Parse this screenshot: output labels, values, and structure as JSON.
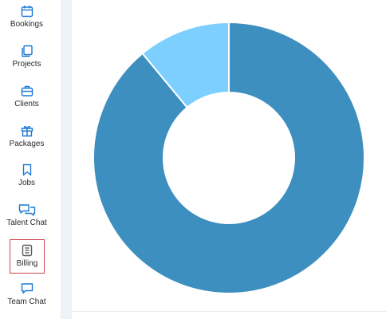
{
  "sidebar": {
    "items": [
      {
        "label": "Bookings",
        "icon": "calendar-icon",
        "active": false
      },
      {
        "label": "Projects",
        "icon": "projects-icon",
        "active": false
      },
      {
        "label": "Clients",
        "icon": "briefcase-icon",
        "active": false
      },
      {
        "label": "Packages",
        "icon": "gift-icon",
        "active": false
      },
      {
        "label": "Jobs",
        "icon": "bookmark-icon",
        "active": false
      },
      {
        "label": "Talent Chat",
        "icon": "chat-bubbles-icon",
        "active": false
      },
      {
        "label": "Billing",
        "icon": "billing-icon",
        "active": true
      },
      {
        "label": "Team Chat",
        "icon": "chat-icon",
        "active": false
      }
    ]
  },
  "colors": {
    "accent": "#1a78d4",
    "active_outline": "#c9444a",
    "slice_major": "#3d8fbf",
    "slice_minor": "#7dcfff"
  },
  "chart_data": {
    "type": "pie",
    "variant": "donut",
    "slices": [
      {
        "value": 89,
        "color": "#3d8fbf"
      },
      {
        "value": 11,
        "color": "#7dcfff"
      }
    ]
  }
}
